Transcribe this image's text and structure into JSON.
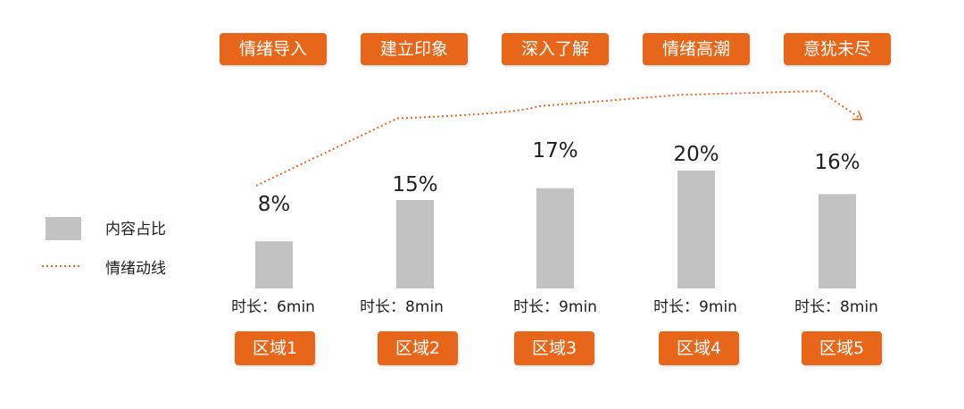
{
  "stages": [
    "情绪导入",
    "建立印象",
    "深入了解",
    "情绪高潮",
    "意犹未尽"
  ],
  "legend": {
    "bar": "内容占比",
    "line": "情绪动线"
  },
  "chart_data": {
    "type": "bar",
    "categories": [
      "区域1",
      "区域2",
      "区域3",
      "区域4",
      "区域5"
    ],
    "series": [
      {
        "name": "内容占比",
        "values": [
          8,
          15,
          17,
          20,
          16
        ],
        "value_labels": [
          "8%",
          "15%",
          "17%",
          "20%",
          "16%"
        ],
        "color": "#c2c2c2"
      }
    ],
    "durations": [
      "时长：6min",
      "时长：8min",
      "时长：9min",
      "时长：9min",
      "时长：8min"
    ],
    "emotion_line": {
      "name": "情绪动线",
      "style": "dotted",
      "color": "#e8661a",
      "points": [
        {
          "x": 1,
          "level": 0.0
        },
        {
          "x": 2,
          "level": 0.73
        },
        {
          "x": 3,
          "level": 0.84
        },
        {
          "x": 4,
          "level": 0.96
        },
        {
          "x": 5,
          "level": 1.0
        },
        {
          "x": 5.75,
          "level": 0.72
        }
      ]
    },
    "accent_color": "#e8661a",
    "grid": false,
    "legend_position": "left"
  }
}
